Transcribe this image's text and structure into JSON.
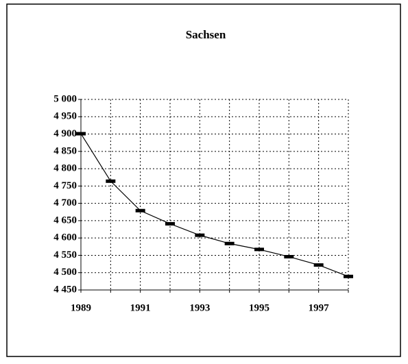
{
  "chart_data": {
    "type": "line",
    "title": "Sachsen",
    "categories": [
      "1989",
      null,
      "1991",
      null,
      "1993",
      null,
      "1995",
      null,
      "1997",
      null
    ],
    "series": [
      {
        "name": "Sachsen",
        "color": "#000000",
        "values": [
          4901,
          4764,
          4679,
          4641,
          4608,
          4584,
          4567,
          4546,
          4522,
          4489
        ]
      }
    ],
    "ylim": [
      4450,
      5000
    ],
    "yticks": [
      {
        "value": 4450,
        "label": "4 450"
      },
      {
        "value": 4500,
        "label": "4 500"
      },
      {
        "value": 4550,
        "label": "4 550"
      },
      {
        "value": 4600,
        "label": "4 600"
      },
      {
        "value": 4650,
        "label": "4 650"
      },
      {
        "value": 4700,
        "label": "4 700"
      },
      {
        "value": 4750,
        "label": "4 750"
      },
      {
        "value": 4800,
        "label": "4 800"
      },
      {
        "value": 4850,
        "label": "4 850"
      },
      {
        "value": 4900,
        "label": "4 900"
      },
      {
        "value": 4950,
        "label": "4 950"
      },
      {
        "value": 5000,
        "label": "5 000"
      }
    ],
    "grid": true
  }
}
